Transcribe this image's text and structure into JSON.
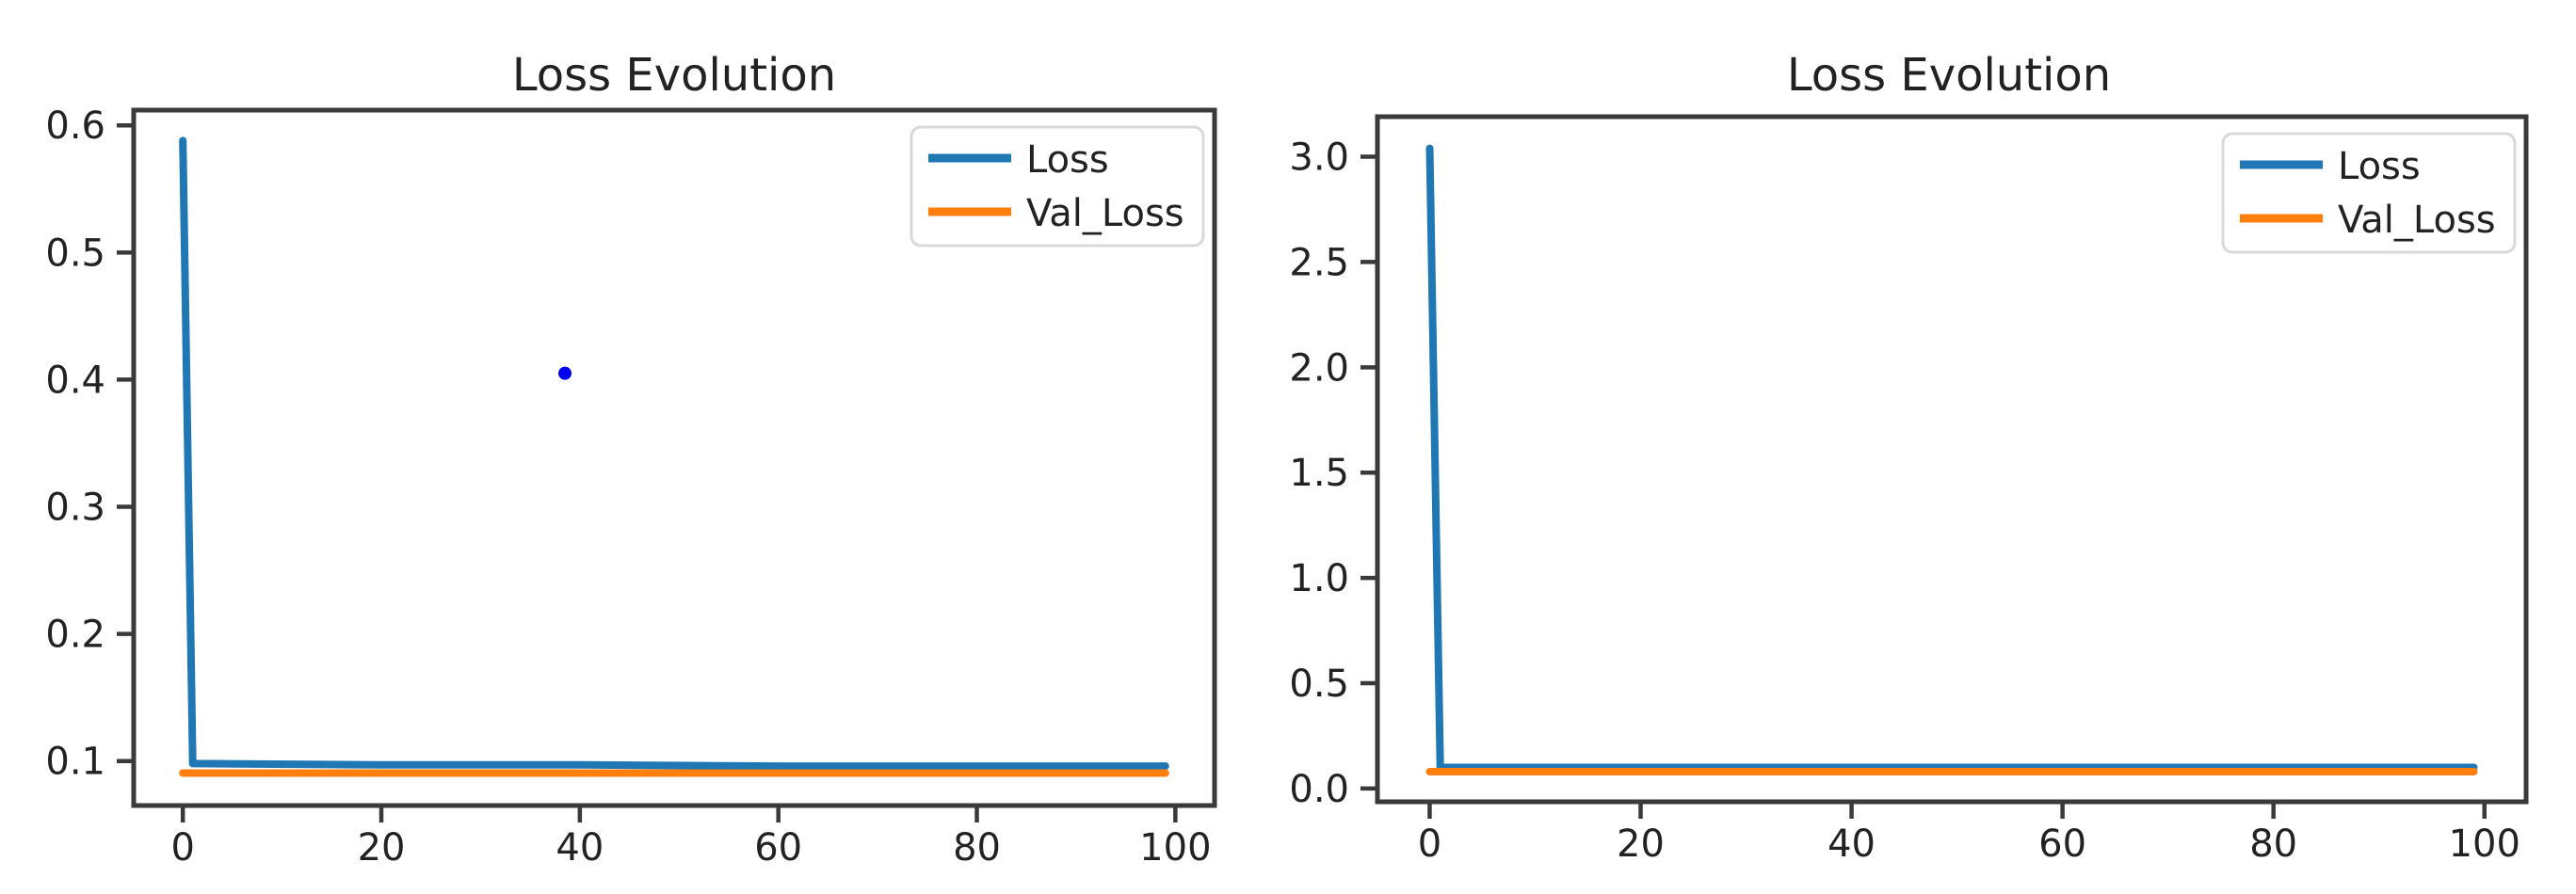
{
  "figure": {
    "background_color": "#ffffff",
    "axis_color": "#3a3a3a",
    "text_color": "#222222",
    "legend_border_color": "#d9d9d9"
  },
  "chart_data": [
    {
      "type": "line",
      "title": "Loss Evolution",
      "xlabel": "",
      "ylabel": "",
      "grid": false,
      "legend_position": "upper right",
      "xlim": [
        -4.95,
        103.95
      ],
      "ylim": [
        0.065,
        0.612
      ],
      "xticks": [
        "0",
        "20",
        "40",
        "60",
        "80",
        "100"
      ],
      "yticks": [
        "0.1",
        "0.2",
        "0.3",
        "0.4",
        "0.5",
        "0.6"
      ],
      "series": [
        {
          "name": "Loss",
          "color": "#1f77b4",
          "x": [
            0,
            1,
            20,
            40,
            60,
            80,
            99
          ],
          "y": [
            0.588,
            0.098,
            0.097,
            0.097,
            0.096,
            0.096,
            0.096
          ]
        },
        {
          "name": "Val_Loss",
          "color": "#ff7f0e",
          "x": [
            0,
            99
          ],
          "y": [
            0.0905,
            0.0905
          ]
        }
      ],
      "points": [
        {
          "x": 38.5,
          "y": 0.405,
          "color": "#0000ee"
        }
      ]
    },
    {
      "type": "line",
      "title": "Loss Evolution",
      "xlabel": "",
      "ylabel": "",
      "grid": false,
      "legend_position": "upper right",
      "xlim": [
        -4.95,
        103.95
      ],
      "ylim": [
        -0.063,
        3.19
      ],
      "xticks": [
        "0",
        "20",
        "40",
        "60",
        "80",
        "100"
      ],
      "yticks": [
        "0.0",
        "0.5",
        "1.0",
        "1.5",
        "2.0",
        "2.5",
        "3.0"
      ],
      "series": [
        {
          "name": "Loss",
          "color": "#1f77b4",
          "x": [
            0,
            1,
            99
          ],
          "y": [
            3.04,
            0.1,
            0.1
          ]
        },
        {
          "name": "Val_Loss",
          "color": "#ff7f0e",
          "x": [
            0,
            99
          ],
          "y": [
            0.08,
            0.08
          ]
        }
      ],
      "points": []
    }
  ]
}
